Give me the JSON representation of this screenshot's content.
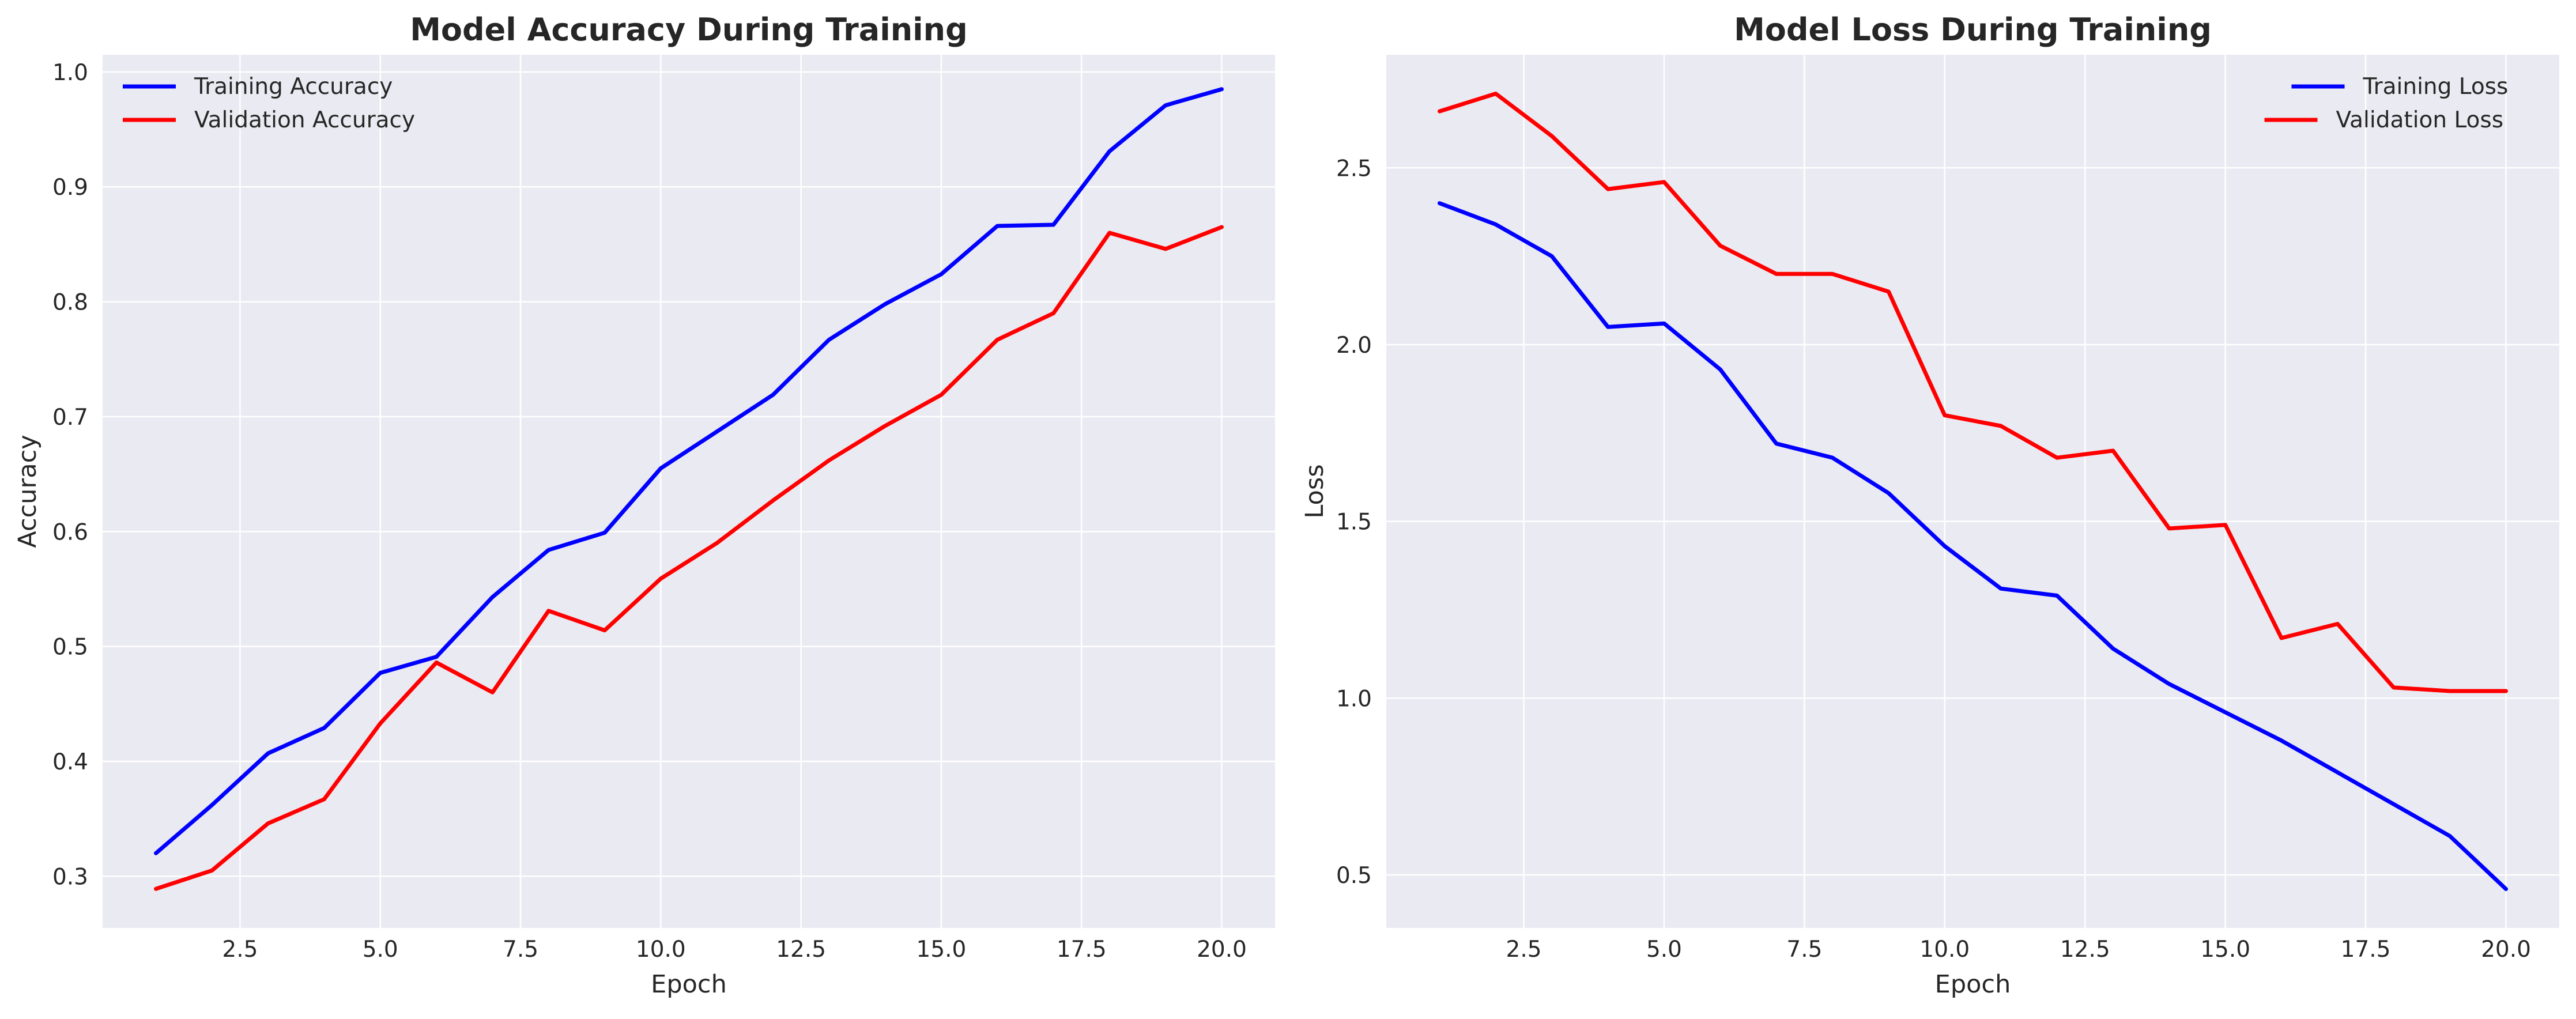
{
  "chart_data": [
    {
      "type": "line",
      "title": "Model Accuracy During Training",
      "xlabel": "Epoch",
      "ylabel": "Accuracy",
      "xlim": [
        0.05,
        20.95
      ],
      "ylim": [
        0.255,
        1.015
      ],
      "xticks": [
        2.5,
        5.0,
        7.5,
        10.0,
        12.5,
        15.0,
        17.5,
        20.0
      ],
      "xtick_labels": [
        "2.5",
        "5.0",
        "7.5",
        "10.0",
        "12.5",
        "15.0",
        "17.5",
        "20.0"
      ],
      "yticks": [
        0.3,
        0.4,
        0.5,
        0.6,
        0.7,
        0.8,
        0.9,
        1.0
      ],
      "ytick_labels": [
        "0.3",
        "0.4",
        "0.5",
        "0.6",
        "0.7",
        "0.8",
        "0.9",
        "1.0"
      ],
      "grid": true,
      "legend_position": "upper-left",
      "x": [
        1,
        2,
        3,
        4,
        5,
        6,
        7,
        8,
        9,
        10,
        11,
        12,
        13,
        14,
        15,
        16,
        17,
        18,
        19,
        20
      ],
      "series": [
        {
          "name": "Training Accuracy",
          "color": "#0000ff",
          "values": [
            0.32,
            0.362,
            0.407,
            0.429,
            0.477,
            0.491,
            0.543,
            0.584,
            0.599,
            0.655,
            0.687,
            0.719,
            0.767,
            0.798,
            0.824,
            0.866,
            0.867,
            0.931,
            0.971,
            0.985
          ]
        },
        {
          "name": "Validation Accuracy",
          "color": "#ff0000",
          "values": [
            0.289,
            0.305,
            0.346,
            0.367,
            0.433,
            0.486,
            0.46,
            0.531,
            0.514,
            0.559,
            0.59,
            0.627,
            0.662,
            0.692,
            0.719,
            0.767,
            0.79,
            0.86,
            0.846,
            0.865
          ]
        }
      ]
    },
    {
      "type": "line",
      "title": "Model Loss During Training",
      "xlabel": "Epoch",
      "ylabel": "Loss",
      "xlim": [
        0.05,
        20.95
      ],
      "ylim": [
        0.35,
        2.82
      ],
      "xticks": [
        2.5,
        5.0,
        7.5,
        10.0,
        12.5,
        15.0,
        17.5,
        20.0
      ],
      "xtick_labels": [
        "2.5",
        "5.0",
        "7.5",
        "10.0",
        "12.5",
        "15.0",
        "17.5",
        "20.0"
      ],
      "yticks": [
        0.5,
        1.0,
        1.5,
        2.0,
        2.5
      ],
      "ytick_labels": [
        "0.5",
        "1.0",
        "1.5",
        "2.0",
        "2.5"
      ],
      "grid": true,
      "legend_position": "upper-right",
      "x": [
        1,
        2,
        3,
        4,
        5,
        6,
        7,
        8,
        9,
        10,
        11,
        12,
        13,
        14,
        15,
        16,
        17,
        18,
        19,
        20
      ],
      "series": [
        {
          "name": "Training Loss",
          "color": "#0000ff",
          "values": [
            2.4,
            2.34,
            2.25,
            2.05,
            2.06,
            1.93,
            1.72,
            1.68,
            1.58,
            1.43,
            1.31,
            1.29,
            1.14,
            1.04,
            0.96,
            0.88,
            0.79,
            0.7,
            0.61,
            0.46
          ]
        },
        {
          "name": "Validation Loss",
          "color": "#ff0000",
          "values": [
            2.66,
            2.71,
            2.59,
            2.44,
            2.46,
            2.28,
            2.2,
            2.2,
            2.15,
            1.8,
            1.77,
            1.68,
            1.7,
            1.48,
            1.49,
            1.17,
            1.21,
            1.03,
            1.02,
            1.02
          ]
        }
      ]
    }
  ]
}
